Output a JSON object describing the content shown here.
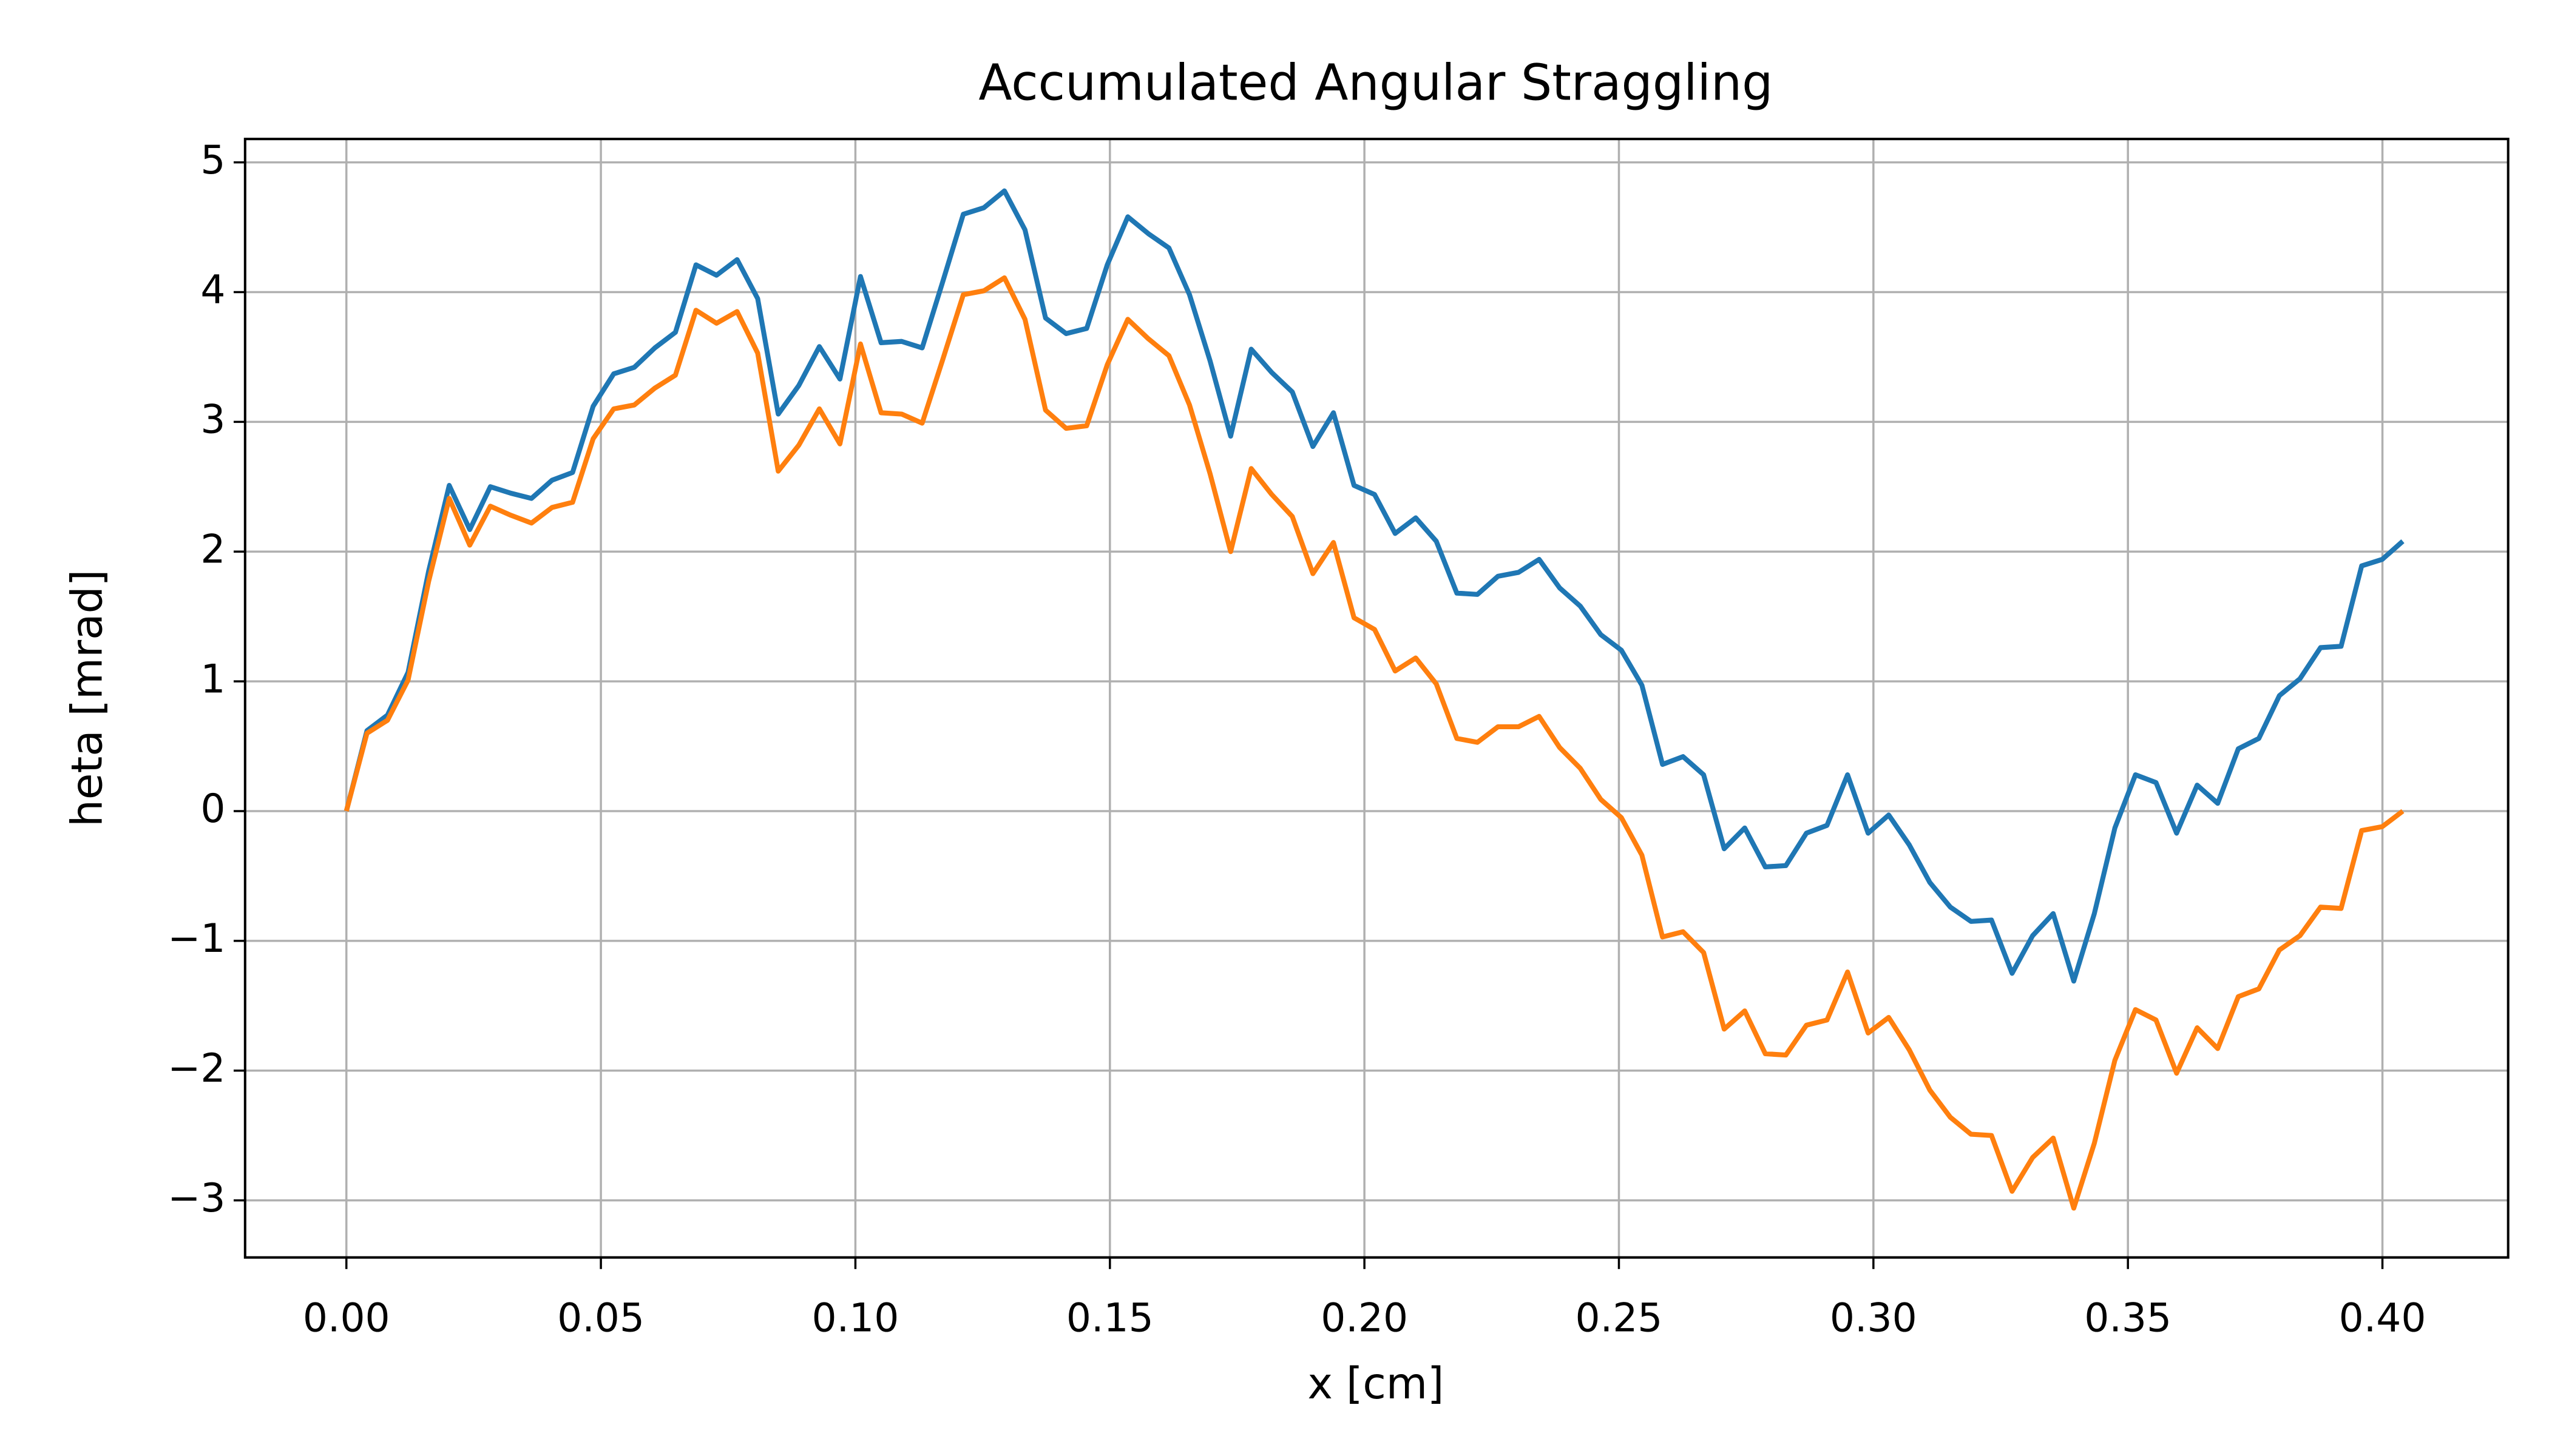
{
  "chart_data": {
    "type": "line",
    "title": "Accumulated Angular Straggling",
    "x_label": "x [cm]",
    "y_label": "heta [mrad]",
    "x": [
      0,
      0.00404,
      0.00808,
      0.01212,
      0.01616,
      0.0202,
      0.02424,
      0.02828,
      0.03232,
      0.03636,
      0.0404,
      0.04444,
      0.04848,
      0.05252,
      0.05656,
      0.0606,
      0.06464,
      0.06868,
      0.07272,
      0.07676,
      0.0808,
      0.08484,
      0.08888,
      0.09292,
      0.09696,
      0.101,
      0.10504,
      0.10908,
      0.11312,
      0.11716,
      0.1212,
      0.12524,
      0.12928,
      0.13332,
      0.13736,
      0.1414,
      0.14544,
      0.14948,
      0.15352,
      0.15756,
      0.1616,
      0.16564,
      0.16968,
      0.17372,
      0.17776,
      0.1818,
      0.18584,
      0.18988,
      0.19392,
      0.19796,
      0.202,
      0.20604,
      0.21008,
      0.21412,
      0.21816,
      0.2222,
      0.22624,
      0.23028,
      0.23432,
      0.23836,
      0.2424,
      0.24644,
      0.25048,
      0.25452,
      0.25856,
      0.2626,
      0.26664,
      0.27068,
      0.27472,
      0.27876,
      0.2828,
      0.28684,
      0.29088,
      0.29492,
      0.29896,
      0.303,
      0.30704,
      0.31108,
      0.31512,
      0.31916,
      0.3232,
      0.32724,
      0.33128,
      0.33532,
      0.33936,
      0.3434,
      0.34744,
      0.35148,
      0.35552,
      0.35956,
      0.3636,
      0.36764,
      0.37168,
      0.37572,
      0.37976,
      0.3838,
      0.38784,
      0.39188,
      0.39592,
      0.39996,
      0.404
    ],
    "series": [
      {
        "color": "#1f77b4",
        "values": [
          0,
          0.62,
          0.74,
          1.07,
          1.85,
          2.51,
          2.17,
          2.5,
          2.45,
          2.41,
          2.55,
          2.61,
          3.12,
          3.37,
          3.42,
          3.57,
          3.69,
          4.21,
          4.13,
          4.25,
          3.95,
          3.06,
          3.28,
          3.58,
          3.33,
          4.12,
          3.61,
          3.62,
          3.57,
          4.08,
          4.6,
          4.65,
          4.78,
          4.48,
          3.8,
          3.68,
          3.72,
          4.21,
          4.58,
          4.45,
          4.34,
          3.98,
          3.47,
          2.89,
          3.56,
          3.38,
          3.23,
          2.81,
          3.07,
          2.51,
          2.44,
          2.14,
          2.26,
          2.08,
          1.68,
          1.67,
          1.81,
          1.84,
          1.94,
          1.72,
          1.58,
          1.36,
          1.24,
          0.97,
          0.36,
          0.42,
          0.28,
          -0.29,
          -0.13,
          -0.43,
          -0.42,
          -0.17,
          -0.11,
          0.28,
          -0.17,
          -0.03,
          -0.26,
          -0.55,
          -0.74,
          -0.85,
          -0.84,
          -1.25,
          -0.96,
          -0.79,
          -1.31,
          -0.79,
          -0.13,
          0.28,
          0.22,
          -0.17,
          0.2,
          0.06,
          0.48,
          0.56,
          0.89,
          1.02,
          1.26,
          1.27,
          1.89,
          1.94,
          2.08
        ]
      },
      {
        "color": "#ff7f0e",
        "values": [
          0,
          0.6,
          0.7,
          1.01,
          1.77,
          2.41,
          2.05,
          2.35,
          2.28,
          2.22,
          2.34,
          2.38,
          2.87,
          3.1,
          3.13,
          3.26,
          3.36,
          3.86,
          3.76,
          3.85,
          3.53,
          2.62,
          2.82,
          3.1,
          2.83,
          3.6,
          3.07,
          3.06,
          2.99,
          3.48,
          3.98,
          4.01,
          4.11,
          3.79,
          3.09,
          2.95,
          2.97,
          3.44,
          3.79,
          3.64,
          3.51,
          3.13,
          2.6,
          2.0,
          2.64,
          2.44,
          2.27,
          1.83,
          2.07,
          1.49,
          1.4,
          1.08,
          1.18,
          0.98,
          0.56,
          0.53,
          0.65,
          0.65,
          0.73,
          0.49,
          0.33,
          0.09,
          -0.05,
          -0.34,
          -0.97,
          -0.93,
          -1.09,
          -1.68,
          -1.54,
          -1.87,
          -1.88,
          -1.65,
          -1.61,
          -1.24,
          -1.71,
          -1.59,
          -1.84,
          -2.15,
          -2.36,
          -2.49,
          -2.5,
          -2.93,
          -2.67,
          -2.52,
          -3.06,
          -2.56,
          -1.92,
          -1.53,
          -1.61,
          -2.02,
          -1.67,
          -1.83,
          -1.43,
          -1.37,
          -1.07,
          -0.96,
          -0.74,
          -0.75,
          -0.15,
          -0.12,
          0
        ]
      }
    ],
    "xlim": [
      -0.0199,
      0.4247
    ],
    "ylim": [
      -3.44,
      5.18
    ],
    "xticks": [
      {
        "value": 0,
        "label": "0.00"
      },
      {
        "value": 0.05,
        "label": "0.05"
      },
      {
        "value": 0.1,
        "label": "0.10"
      },
      {
        "value": 0.15,
        "label": "0.15"
      },
      {
        "value": 0.2,
        "label": "0.20"
      },
      {
        "value": 0.25,
        "label": "0.25"
      },
      {
        "value": 0.3,
        "label": "0.30"
      },
      {
        "value": 0.35,
        "label": "0.35"
      },
      {
        "value": 0.4,
        "label": "0.40"
      }
    ],
    "yticks": [
      {
        "value": -3,
        "label": "−3"
      },
      {
        "value": -2,
        "label": "−2"
      },
      {
        "value": -1,
        "label": "−1"
      },
      0,
      1,
      2,
      3,
      4,
      5
    ],
    "grid": true
  }
}
